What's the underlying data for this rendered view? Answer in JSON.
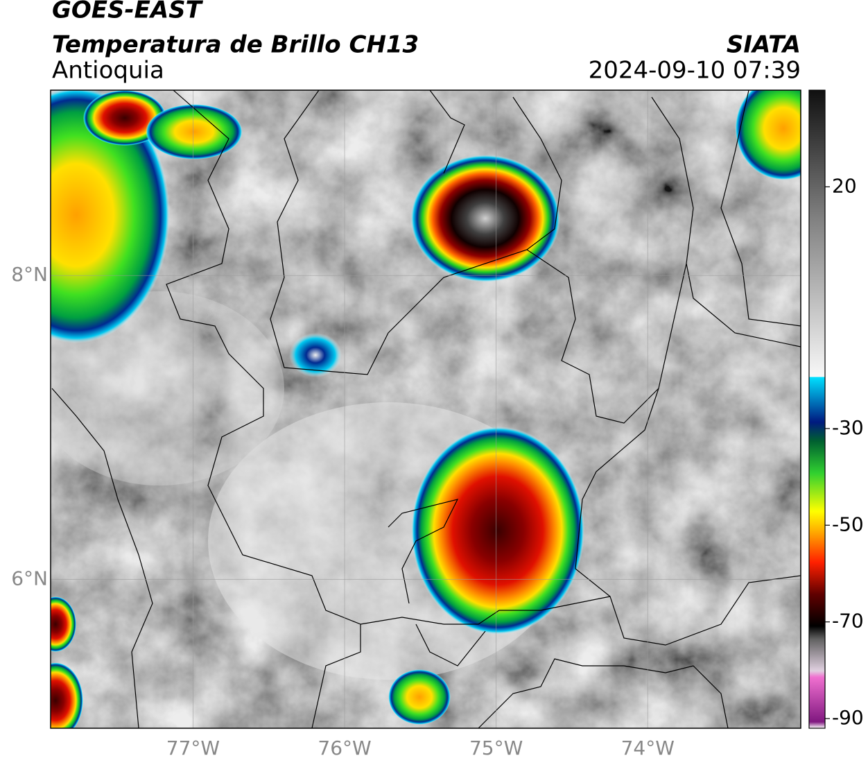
{
  "header": {
    "satellite": "GOES-EAST",
    "product": "Temperatura de Brillo CH13",
    "region": "Antioquia",
    "source": "SIATA",
    "datetime": "2024-09-10 07:39"
  },
  "map": {
    "lonlim": [
      -77.94,
      -72.99
    ],
    "latlim": [
      5.02,
      9.22
    ],
    "lon_ticks": [
      {
        "value": -77,
        "label": "77°W"
      },
      {
        "value": -76,
        "label": "76°W"
      },
      {
        "value": -75,
        "label": "75°W"
      },
      {
        "value": -74,
        "label": "74°W"
      }
    ],
    "lat_ticks": [
      {
        "value": 8,
        "label": "8°N"
      },
      {
        "value": 6,
        "label": "6°N"
      }
    ],
    "grid": true
  },
  "colorbar": {
    "lim": [
      -92,
      40
    ],
    "ticks": [
      20,
      -30,
      -50,
      -70,
      -90
    ]
  }
}
